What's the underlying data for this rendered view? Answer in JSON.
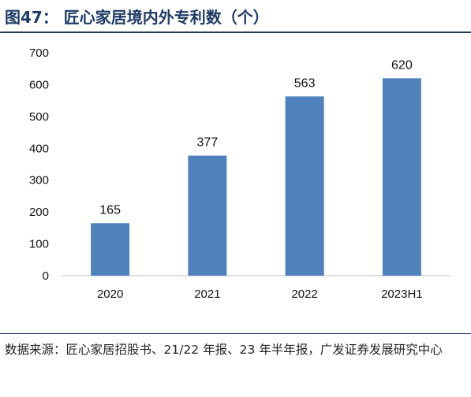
{
  "figure": {
    "title": "图47：  匠心家居境内外专利数（个）",
    "source": "数据来源：匠心家居招股书、21/22 年报、23 年半年报，广发证券发展研究中心"
  },
  "chart_data": {
    "type": "bar",
    "title": "匠心家居境内外专利数（个）",
    "categories": [
      "2020",
      "2021",
      "2022",
      "2023H1"
    ],
    "values": [
      165,
      377,
      563,
      620
    ],
    "data_labels": [
      "165",
      "377",
      "563",
      "620"
    ],
    "yticks": [
      "0",
      "100",
      "200",
      "300",
      "400",
      "500",
      "600",
      "700"
    ],
    "ylim": [
      0,
      700
    ],
    "xlabel": "",
    "ylabel": "",
    "grid": false,
    "legend": "none",
    "bar_color": "#4f81bd"
  }
}
